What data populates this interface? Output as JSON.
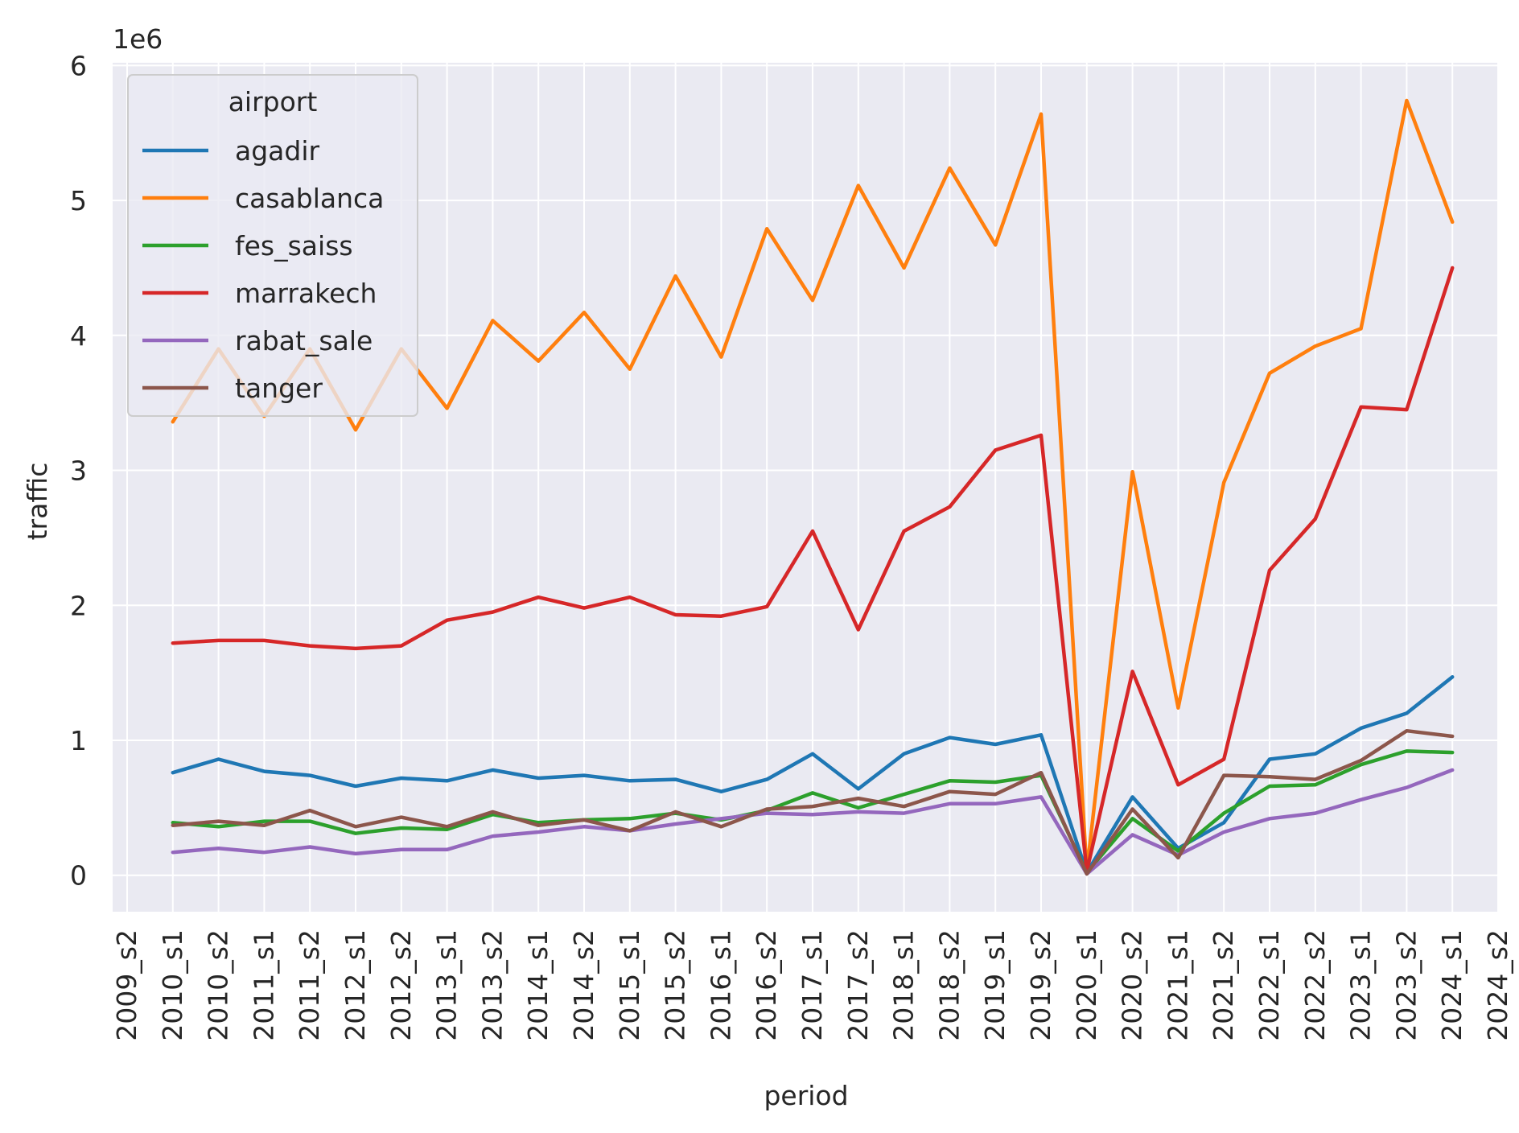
{
  "chart_data": {
    "type": "line",
    "xlabel": "period",
    "ylabel": "traffic",
    "y_offset_label": "1e6",
    "y_scale": 1000000,
    "ylim": [
      -270000,
      6020000
    ],
    "yticks": [
      0,
      1,
      2,
      3,
      4,
      5,
      6
    ],
    "grid": true,
    "legend": {
      "title": "airport",
      "placement": "top-left"
    },
    "tick_labels": [
      "2009_s2",
      "2010_s1",
      "2010_s2",
      "2011_s1",
      "2011_s2",
      "2012_s1",
      "2012_s2",
      "2013_s1",
      "2013_s2",
      "2014_s1",
      "2014_s2",
      "2015_s1",
      "2015_s2",
      "2016_s1",
      "2016_s2",
      "2017_s1",
      "2017_s2",
      "2018_s1",
      "2018_s2",
      "2019_s1",
      "2019_s2",
      "2020_s1",
      "2020_s2",
      "2021_s1",
      "2021_s2",
      "2022_s1",
      "2022_s2",
      "2023_s1",
      "2023_s2",
      "2024_s1",
      "2024_s2"
    ],
    "categories": [
      "2010_s1",
      "2010_s2",
      "2011_s1",
      "2011_s2",
      "2012_s1",
      "2012_s2",
      "2013_s1",
      "2013_s2",
      "2014_s1",
      "2014_s2",
      "2015_s1",
      "2015_s2",
      "2016_s1",
      "2016_s2",
      "2017_s1",
      "2017_s2",
      "2018_s1",
      "2018_s2",
      "2019_s1",
      "2019_s2",
      "2020_s1",
      "2020_s2",
      "2021_s1",
      "2021_s2",
      "2022_s1",
      "2022_s2",
      "2023_s1",
      "2023_s2",
      "2024_s1"
    ],
    "series": [
      {
        "name": "agadir",
        "color": "#1f77b4",
        "values": [
          760000,
          860000,
          770000,
          740000,
          660000,
          720000,
          700000,
          780000,
          720000,
          740000,
          700000,
          710000,
          620000,
          710000,
          900000,
          640000,
          900000,
          1020000,
          970000,
          1040000,
          20000,
          580000,
          200000,
          390000,
          860000,
          900000,
          1090000,
          1200000,
          1470000
        ]
      },
      {
        "name": "casablanca",
        "color": "#ff7f0e",
        "values": [
          3360000,
          3900000,
          3400000,
          3900000,
          3300000,
          3900000,
          3460000,
          4110000,
          3810000,
          4170000,
          3750000,
          4440000,
          3840000,
          4790000,
          4260000,
          5110000,
          4500000,
          5240000,
          4670000,
          5640000,
          30000,
          2990000,
          1240000,
          2910000,
          3720000,
          3920000,
          4050000,
          5740000,
          4840000
        ]
      },
      {
        "name": "fes_saiss",
        "color": "#2ca02c",
        "values": [
          390000,
          360000,
          400000,
          400000,
          310000,
          350000,
          340000,
          450000,
          390000,
          410000,
          420000,
          460000,
          410000,
          480000,
          610000,
          500000,
          600000,
          700000,
          690000,
          740000,
          20000,
          420000,
          180000,
          460000,
          660000,
          670000,
          820000,
          920000,
          910000
        ]
      },
      {
        "name": "marrakech",
        "color": "#d62728",
        "values": [
          1720000,
          1740000,
          1740000,
          1700000,
          1680000,
          1700000,
          1890000,
          1950000,
          2060000,
          1980000,
          2060000,
          1930000,
          1920000,
          1990000,
          2550000,
          1820000,
          2550000,
          2730000,
          3150000,
          3260000,
          30000,
          1510000,
          670000,
          860000,
          2260000,
          2640000,
          3470000,
          3450000,
          4500000
        ]
      },
      {
        "name": "rabat_sale",
        "color": "#9467bd",
        "values": [
          170000,
          200000,
          170000,
          210000,
          160000,
          190000,
          190000,
          290000,
          320000,
          360000,
          330000,
          380000,
          420000,
          460000,
          450000,
          470000,
          460000,
          530000,
          530000,
          580000,
          10000,
          300000,
          150000,
          320000,
          420000,
          460000,
          560000,
          650000,
          780000
        ]
      },
      {
        "name": "tanger",
        "color": "#8c564b",
        "values": [
          370000,
          400000,
          370000,
          480000,
          360000,
          430000,
          360000,
          470000,
          370000,
          410000,
          330000,
          470000,
          360000,
          490000,
          510000,
          570000,
          510000,
          620000,
          600000,
          760000,
          10000,
          490000,
          130000,
          740000,
          730000,
          710000,
          850000,
          1070000,
          1030000
        ]
      }
    ]
  }
}
